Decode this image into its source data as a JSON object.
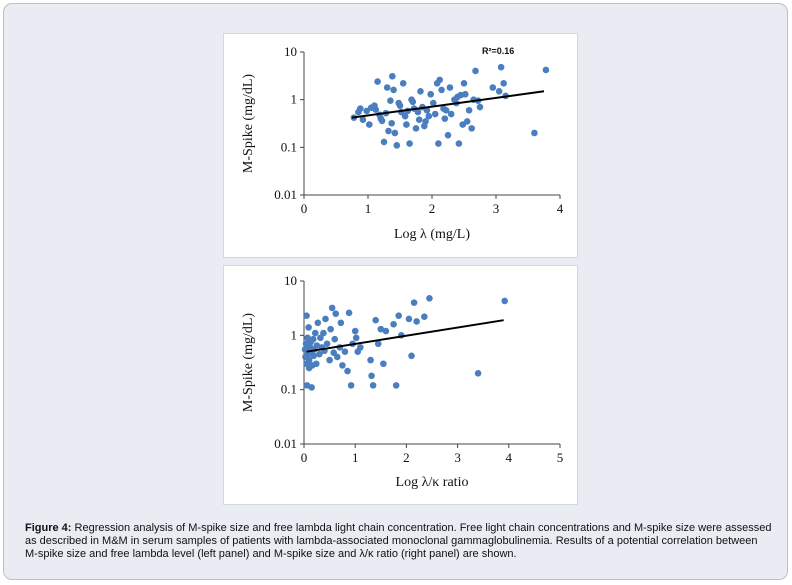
{
  "figure": {
    "caption_label": "Figure 4:",
    "caption_text": "Regression analysis of M-spike size and free lambda light chain concentration. Free light chain concentrations and M-spike size were assessed as described in M&M in serum samples of patients with lambda-associated monoclonal gammaglobulinemia. Results of a potential correlation between M-spike size and free lambda level (left panel) and M-spike size and λ/κ ratio (right panel) are shown."
  },
  "colors": {
    "points": "#4a7ebf",
    "trendline": "#000000",
    "frame_bg": "#e9ecf3"
  },
  "chart_data": [
    {
      "type": "scatter",
      "xlabel": "Log λ (mg/L)",
      "ylabel": "M-Spike (mg/dL)",
      "xlim": [
        0,
        4
      ],
      "ylim": [
        0.01,
        10
      ],
      "y_scale": "log",
      "x_ticks": [
        "0",
        "1",
        "2",
        "3",
        "4"
      ],
      "y_ticks": [
        "0.01",
        "0.1",
        "1",
        "10"
      ],
      "annotation": "R²=0.16",
      "grid": false,
      "trendline": [
        [
          0.75,
          0.42
        ],
        [
          3.75,
          1.5
        ]
      ],
      "points": [
        [
          0.78,
          0.42
        ],
        [
          0.85,
          0.55
        ],
        [
          0.88,
          0.65
        ],
        [
          0.92,
          0.38
        ],
        [
          0.98,
          0.58
        ],
        [
          1.02,
          0.3
        ],
        [
          1.05,
          0.68
        ],
        [
          1.1,
          0.75
        ],
        [
          1.12,
          0.62
        ],
        [
          1.15,
          2.4
        ],
        [
          1.18,
          0.48
        ],
        [
          1.2,
          0.4
        ],
        [
          1.22,
          0.36
        ],
        [
          1.25,
          0.13
        ],
        [
          1.28,
          0.52
        ],
        [
          1.3,
          1.8
        ],
        [
          1.32,
          0.22
        ],
        [
          1.35,
          0.95
        ],
        [
          1.37,
          0.32
        ],
        [
          1.38,
          3.1
        ],
        [
          1.4,
          1.6
        ],
        [
          1.42,
          0.2
        ],
        [
          1.45,
          0.11
        ],
        [
          1.48,
          0.85
        ],
        [
          1.5,
          0.75
        ],
        [
          1.52,
          0.55
        ],
        [
          1.55,
          2.2
        ],
        [
          1.58,
          0.45
        ],
        [
          1.6,
          0.3
        ],
        [
          1.62,
          0.58
        ],
        [
          1.65,
          0.12
        ],
        [
          1.68,
          1.0
        ],
        [
          1.7,
          0.9
        ],
        [
          1.72,
          0.65
        ],
        [
          1.75,
          0.25
        ],
        [
          1.78,
          0.55
        ],
        [
          1.8,
          0.38
        ],
        [
          1.82,
          1.5
        ],
        [
          1.85,
          0.7
        ],
        [
          1.88,
          0.28
        ],
        [
          1.9,
          0.35
        ],
        [
          1.92,
          0.6
        ],
        [
          1.95,
          0.45
        ],
        [
          1.98,
          1.3
        ],
        [
          2.02,
          0.85
        ],
        [
          2.05,
          0.5
        ],
        [
          2.08,
          2.2
        ],
        [
          2.1,
          0.12
        ],
        [
          2.12,
          2.6
        ],
        [
          2.15,
          1.6
        ],
        [
          2.18,
          0.65
        ],
        [
          2.2,
          0.4
        ],
        [
          2.22,
          0.6
        ],
        [
          2.25,
          0.18
        ],
        [
          2.28,
          1.8
        ],
        [
          2.3,
          0.5
        ],
        [
          2.35,
          1.0
        ],
        [
          2.38,
          0.85
        ],
        [
          2.4,
          1.15
        ],
        [
          2.42,
          0.12
        ],
        [
          2.45,
          1.25
        ],
        [
          2.48,
          0.3
        ],
        [
          2.5,
          2.2
        ],
        [
          2.52,
          1.3
        ],
        [
          2.55,
          0.35
        ],
        [
          2.58,
          0.6
        ],
        [
          2.62,
          0.25
        ],
        [
          2.65,
          1.0
        ],
        [
          2.68,
          4.0
        ],
        [
          2.72,
          0.95
        ],
        [
          2.75,
          0.7
        ],
        [
          2.95,
          1.8
        ],
        [
          3.05,
          1.5
        ],
        [
          3.08,
          4.8
        ],
        [
          3.12,
          2.2
        ],
        [
          3.15,
          1.2
        ],
        [
          3.6,
          0.2
        ],
        [
          3.78,
          4.2
        ]
      ]
    },
    {
      "type": "scatter",
      "xlabel": "Log λ/κ ratio",
      "ylabel": "M-Spike (mg/dL)",
      "xlim": [
        0,
        5
      ],
      "ylim": [
        0.01,
        10
      ],
      "y_scale": "log",
      "x_ticks": [
        "0",
        "1",
        "2",
        "3",
        "4",
        "5"
      ],
      "y_ticks": [
        "0.01",
        "0.1",
        "1",
        "10"
      ],
      "grid": false,
      "trendline": [
        [
          0.05,
          0.5
        ],
        [
          3.9,
          1.9
        ]
      ],
      "points": [
        [
          0.02,
          0.55
        ],
        [
          0.03,
          0.4
        ],
        [
          0.04,
          0.7
        ],
        [
          0.05,
          0.3
        ],
        [
          0.05,
          2.3
        ],
        [
          0.06,
          0.12
        ],
        [
          0.07,
          0.9
        ],
        [
          0.08,
          0.45
        ],
        [
          0.09,
          1.4
        ],
        [
          0.1,
          0.35
        ],
        [
          0.1,
          0.25
        ],
        [
          0.12,
          0.6
        ],
        [
          0.13,
          0.75
        ],
        [
          0.14,
          0.5
        ],
        [
          0.15,
          0.11
        ],
        [
          0.16,
          0.28
        ],
        [
          0.18,
          0.85
        ],
        [
          0.19,
          0.42
        ],
        [
          0.2,
          0.55
        ],
        [
          0.22,
          1.1
        ],
        [
          0.24,
          0.3
        ],
        [
          0.25,
          0.65
        ],
        [
          0.27,
          1.7
        ],
        [
          0.3,
          0.45
        ],
        [
          0.32,
          0.9
        ],
        [
          0.35,
          0.6
        ],
        [
          0.38,
          1.1
        ],
        [
          0.4,
          0.52
        ],
        [
          0.42,
          2.0
        ],
        [
          0.45,
          0.7
        ],
        [
          0.5,
          0.35
        ],
        [
          0.52,
          1.3
        ],
        [
          0.55,
          3.2
        ],
        [
          0.58,
          0.48
        ],
        [
          0.6,
          0.85
        ],
        [
          0.62,
          2.5
        ],
        [
          0.65,
          0.4
        ],
        [
          0.7,
          0.6
        ],
        [
          0.72,
          1.7
        ],
        [
          0.75,
          0.28
        ],
        [
          0.8,
          0.5
        ],
        [
          0.85,
          0.22
        ],
        [
          0.88,
          2.6
        ],
        [
          0.92,
          0.12
        ],
        [
          0.95,
          0.7
        ],
        [
          1.0,
          1.2
        ],
        [
          1.02,
          0.9
        ],
        [
          1.05,
          0.5
        ],
        [
          1.1,
          0.6
        ],
        [
          1.3,
          0.35
        ],
        [
          1.32,
          0.18
        ],
        [
          1.35,
          0.12
        ],
        [
          1.4,
          1.9
        ],
        [
          1.45,
          0.7
        ],
        [
          1.5,
          1.3
        ],
        [
          1.55,
          0.3
        ],
        [
          1.6,
          1.2
        ],
        [
          1.75,
          1.6
        ],
        [
          1.8,
          0.12
        ],
        [
          1.85,
          2.3
        ],
        [
          1.9,
          1.0
        ],
        [
          2.05,
          2.0
        ],
        [
          2.1,
          0.42
        ],
        [
          2.15,
          4.0
        ],
        [
          2.2,
          1.8
        ],
        [
          2.35,
          2.2
        ],
        [
          2.45,
          4.8
        ],
        [
          3.4,
          0.2
        ],
        [
          3.92,
          4.3
        ]
      ]
    }
  ]
}
